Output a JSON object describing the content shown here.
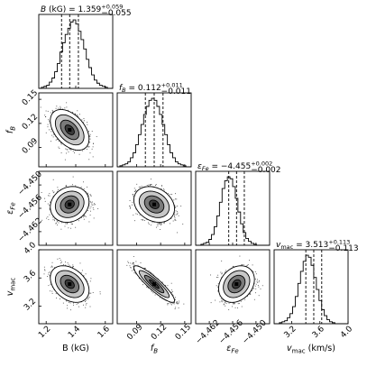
{
  "chart_data": {
    "type": "corner",
    "parameters": [
      {
        "key": "B",
        "xlabel": "B (kG)",
        "ylabel": "",
        "title_main": "B (kG) = 1.359",
        "title_sup": "+0.059",
        "title_sub": "−0.055",
        "range": [
          1.15,
          1.65
        ],
        "ticks": [
          1.2,
          1.4,
          1.6
        ],
        "tick_labels": [
          "1.2",
          "1.4",
          "1.6"
        ],
        "median": 1.359,
        "quantiles": [
          1.304,
          1.359,
          1.418
        ],
        "hist": [
          0,
          1,
          2,
          3,
          6,
          10,
          16,
          24,
          35,
          44,
          52,
          58,
          64,
          66,
          62,
          55,
          47,
          38,
          28,
          20,
          13,
          8,
          5,
          3,
          2,
          1,
          0,
          0
        ]
      },
      {
        "key": "fB",
        "xlabel": "f_B",
        "ylabel": "f_B",
        "title_main": "f_B = 0.112",
        "title_sup": "+0.011",
        "title_sub": "−0.011",
        "range": [
          0.066,
          0.158
        ],
        "ticks": [
          0.09,
          0.12,
          0.15
        ],
        "tick_labels": [
          "0.09",
          "0.12",
          "0.15"
        ],
        "median": 0.112,
        "quantiles": [
          0.101,
          0.112,
          0.123
        ],
        "hist": [
          0,
          1,
          2,
          3,
          5,
          9,
          14,
          22,
          32,
          42,
          52,
          60,
          66,
          68,
          66,
          60,
          52,
          42,
          32,
          22,
          14,
          9,
          5,
          3,
          2,
          1,
          0,
          0
        ]
      },
      {
        "key": "eFe",
        "xlabel": "ε_Fe",
        "ylabel": "ε_Fe",
        "title_main": "ε_Fe = −4.455",
        "title_sup": "+0.002",
        "title_sub": "−0.002",
        "range": [
          -4.4655,
          -4.4465
        ],
        "ticks": [
          -4.462,
          -4.456,
          -4.45
        ],
        "tick_labels": [
          "−4.462",
          "−4.456",
          "−4.450"
        ],
        "median": -4.455,
        "quantiles": [
          -4.457,
          -4.455,
          -4.453
        ],
        "hist": [
          0,
          0,
          1,
          2,
          3,
          6,
          11,
          19,
          30,
          44,
          58,
          66,
          70,
          68,
          60,
          48,
          34,
          22,
          13,
          7,
          4,
          2,
          1,
          0,
          0,
          0,
          0,
          0
        ]
      },
      {
        "key": "vmac",
        "xlabel": "v_mac (km/s)",
        "ylabel": "v_mac",
        "title_main": "v_mac = 3.513",
        "title_sup": "+0.113",
        "title_sub": "−0.113",
        "range": [
          2.95,
          4.0
        ],
        "ticks": [
          3.2,
          3.6,
          4.0
        ],
        "tick_labels": [
          "3.2",
          "3.6",
          "4.0"
        ],
        "median": 3.513,
        "quantiles": [
          3.4,
          3.513,
          3.626
        ],
        "hist": [
          0,
          0,
          1,
          2,
          3,
          6,
          10,
          17,
          27,
          40,
          52,
          62,
          68,
          66,
          58,
          46,
          34,
          23,
          14,
          8,
          4,
          2,
          1,
          0,
          0,
          0,
          0,
          0
        ]
      }
    ],
    "sigma": {
      "B": 0.057,
      "fB": 0.011,
      "eFe": 0.002,
      "vmac": 0.113
    },
    "correlations": [
      {
        "x": "B",
        "y": "fB",
        "rho": -0.45
      },
      {
        "x": "B",
        "y": "eFe",
        "rho": 0.15
      },
      {
        "x": "fB",
        "y": "eFe",
        "rho": -0.25
      },
      {
        "x": "B",
        "y": "vmac",
        "rho": -0.35
      },
      {
        "x": "fB",
        "y": "vmac",
        "rho": -0.9
      },
      {
        "x": "eFe",
        "y": "vmac",
        "rho": 0.25
      }
    ],
    "contour_levels": 4,
    "quantile_levels": [
      0.16,
      0.5,
      0.84
    ],
    "grid": false
  }
}
